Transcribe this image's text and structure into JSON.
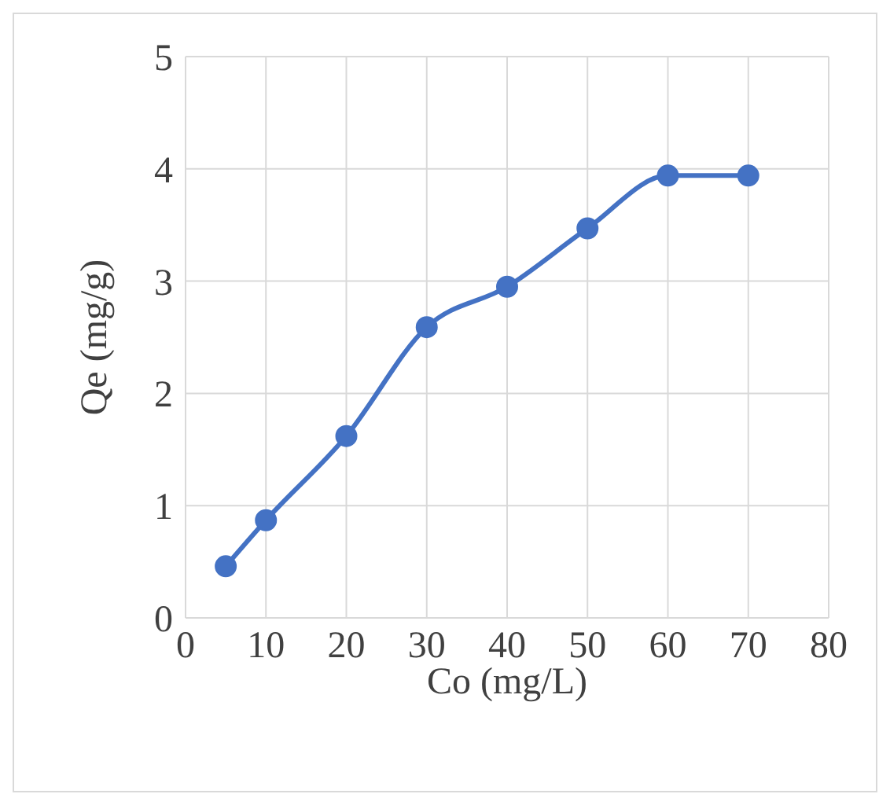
{
  "chart_data": {
    "type": "line",
    "xlabel": "Co (mg/L)",
    "ylabel": "Qe (mg/g)",
    "x": [
      5,
      10,
      20,
      30,
      40,
      50,
      60,
      70
    ],
    "series": [
      {
        "color": "#4472c4",
        "values": [
          0.46,
          0.87,
          1.62,
          2.59,
          2.95,
          3.47,
          3.94,
          3.94
        ]
      }
    ],
    "xlim": [
      0,
      80
    ],
    "xticks": [
      0,
      10,
      20,
      30,
      40,
      50,
      60,
      70,
      80
    ],
    "ylim": [
      0,
      5
    ],
    "yticks": [
      0,
      1,
      2,
      3,
      4,
      5
    ],
    "grid": true,
    "marker": "circle",
    "line_style": "solid",
    "legend": false
  }
}
